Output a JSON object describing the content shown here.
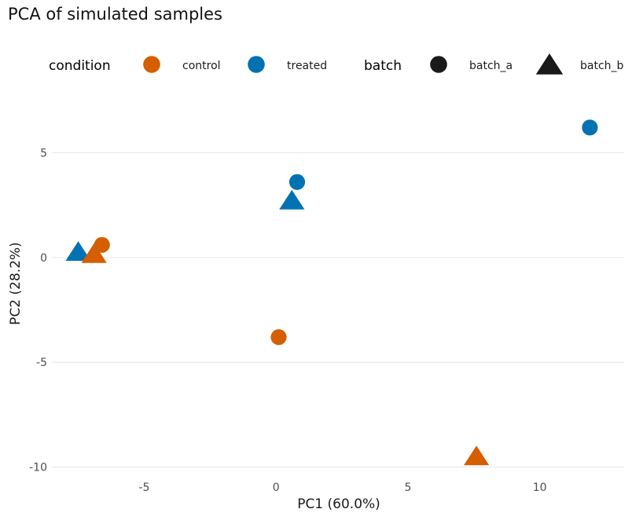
{
  "chart_data": {
    "type": "scatter",
    "title": "PCA of simulated samples",
    "xlabel": "PC1 (60.0%)",
    "ylabel": "PC2 (28.2%)",
    "xlim": [
      -8.5,
      13.2
    ],
    "ylim": [
      -10.5,
      7.6
    ],
    "x_ticks": [
      -5,
      0,
      5,
      10
    ],
    "y_ticks": [
      -10,
      -5,
      0,
      5
    ],
    "x_tick_labels": [
      "-5",
      "0",
      "5",
      "10"
    ],
    "y_tick_labels": [
      "-10",
      "-5",
      "0",
      "5"
    ],
    "grid": "horizontal",
    "legend_position": "top",
    "legends": [
      {
        "title": "condition",
        "entries": [
          {
            "label": "control",
            "color": "#D55E00",
            "shape": "circle"
          },
          {
            "label": "treated",
            "color": "#0072B2",
            "shape": "circle"
          }
        ]
      },
      {
        "title": "batch",
        "entries": [
          {
            "label": "batch_a",
            "color": "#1a1a1a",
            "shape": "circle"
          },
          {
            "label": "batch_b",
            "color": "#1a1a1a",
            "shape": "triangle"
          }
        ]
      }
    ],
    "colors": {
      "control": "#D55E00",
      "treated": "#0072B2"
    },
    "points": [
      {
        "x": 11.9,
        "y": 6.2,
        "condition": "treated",
        "batch": "batch_a"
      },
      {
        "x": 0.8,
        "y": 3.6,
        "condition": "treated",
        "batch": "batch_a"
      },
      {
        "x": 0.6,
        "y": 2.7,
        "condition": "treated",
        "batch": "batch_b"
      },
      {
        "x": -7.5,
        "y": 0.25,
        "condition": "treated",
        "batch": "batch_b"
      },
      {
        "x": -6.6,
        "y": 0.6,
        "condition": "control",
        "batch": "batch_a"
      },
      {
        "x": -6.9,
        "y": 0.15,
        "condition": "control",
        "batch": "batch_b"
      },
      {
        "x": 0.1,
        "y": -3.8,
        "condition": "control",
        "batch": "batch_a"
      },
      {
        "x": 7.6,
        "y": -9.5,
        "condition": "control",
        "batch": "batch_b"
      }
    ]
  }
}
